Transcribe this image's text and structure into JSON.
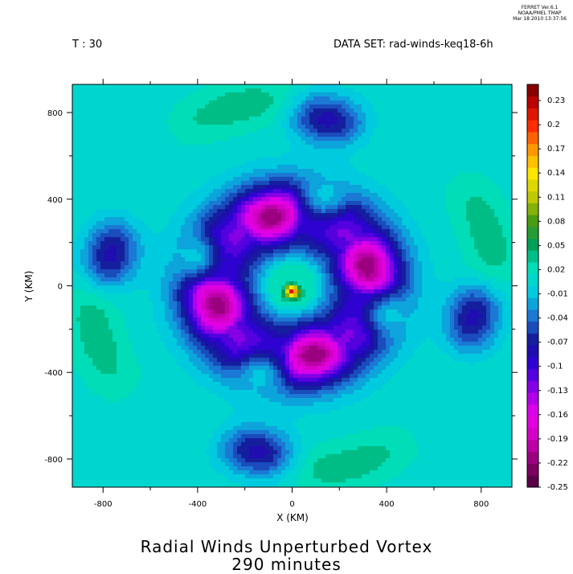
{
  "header": {
    "stamp_line1": "FERRET  Ver.6.1",
    "stamp_line2": "NOAA/PMEL TMAP",
    "stamp_line3": "Mar 18 2010 13:37:56",
    "time_label": "T : 30",
    "dataset_label": "DATA SET: rad-winds-keq18-6h"
  },
  "chart_data": {
    "type": "heatmap",
    "title": "Radial Winds Unperturbed Vortex",
    "subtitle": "290 minutes",
    "xlabel": "X (KM)",
    "ylabel": "Y (KM)",
    "xlim": [
      -930,
      930
    ],
    "ylim": [
      -930,
      930
    ],
    "x_ticks": [
      -800,
      -400,
      0,
      400,
      800
    ],
    "y_ticks": [
      800,
      400,
      0,
      -400,
      -800
    ],
    "x_tick_labels": [
      "-800",
      "-400",
      "0",
      "400",
      "800"
    ],
    "y_tick_labels": [
      "800",
      "400",
      "0",
      "-400",
      "-800"
    ],
    "colorbar": {
      "range": [
        -0.25,
        0.25
      ],
      "labels": [
        "0.23",
        "0.2",
        "0.17",
        "0.14",
        "0.11",
        "0.08",
        "0.05",
        "0.02",
        "-0.01",
        "-0.04",
        "-0.07",
        "-0.1",
        "-0.13",
        "-0.16",
        "-0.19",
        "-0.22",
        "-0.25"
      ],
      "label_values": [
        0.23,
        0.2,
        0.17,
        0.14,
        0.11,
        0.08,
        0.05,
        0.02,
        -0.01,
        -0.04,
        -0.07,
        -0.1,
        -0.13,
        -0.16,
        -0.19,
        -0.22,
        -0.25
      ]
    },
    "field_features": [
      {
        "x": -100,
        "y": 300,
        "value": -0.21
      },
      {
        "x": 300,
        "y": 150,
        "value": -0.21
      },
      {
        "x": 100,
        "y": -300,
        "value": -0.21
      },
      {
        "x": -300,
        "y": -150,
        "value": -0.21
      },
      {
        "x": 130,
        "y": 380,
        "value": 0.06
      },
      {
        "x": 350,
        "y": -150,
        "value": 0.06
      },
      {
        "x": -130,
        "y": -380,
        "value": 0.06
      },
      {
        "x": -350,
        "y": 150,
        "value": 0.06
      },
      {
        "x": 0,
        "y": -20,
        "value": 0.2
      },
      {
        "x": 150,
        "y": 780,
        "value": -0.1
      },
      {
        "x": -150,
        "y": -780,
        "value": -0.1
      },
      {
        "x": 780,
        "y": -160,
        "value": -0.1
      },
      {
        "x": -780,
        "y": 160,
        "value": -0.1
      },
      {
        "x": -200,
        "y": 850,
        "value": 0.03
      },
      {
        "x": 200,
        "y": -850,
        "value": 0.03
      },
      {
        "x": 850,
        "y": 200,
        "value": 0.02
      },
      {
        "x": -850,
        "y": -200,
        "value": 0.02
      },
      {
        "x": 850,
        "y": -700,
        "value": 0.02
      },
      {
        "x": -850,
        "y": 700,
        "value": 0.02
      }
    ]
  }
}
